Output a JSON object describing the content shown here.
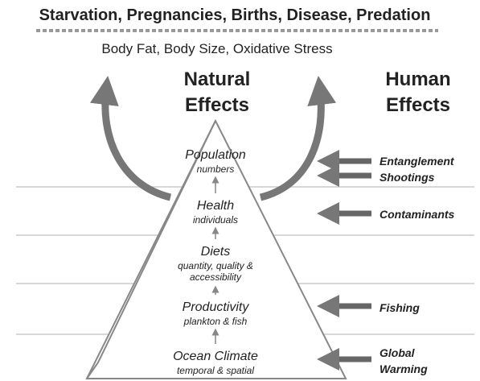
{
  "header": {
    "title": "Starvation, Pregnancies, Births, Disease, Predation",
    "subtitle": "Body Fat, Body Size, Oxidative Stress"
  },
  "columns": {
    "natural": [
      "Natural",
      "Effects"
    ],
    "human": [
      "Human",
      "Effects"
    ]
  },
  "levels": [
    {
      "name": "Population",
      "detail": [
        "numbers"
      ]
    },
    {
      "name": "Health",
      "detail": [
        "individuals"
      ]
    },
    {
      "name": "Diets",
      "detail": [
        "quantity, quality &",
        "accessibility"
      ]
    },
    {
      "name": "Productivity",
      "detail": [
        "plankton & fish"
      ]
    },
    {
      "name": "Ocean Climate",
      "detail": [
        "temporal & spatial"
      ]
    }
  ],
  "human_effects": [
    {
      "label": [
        "Entanglement"
      ]
    },
    {
      "label": [
        "Shootings"
      ]
    },
    {
      "label": [
        "Contaminants"
      ]
    },
    {
      "label": [
        "Fishing"
      ]
    },
    {
      "label": [
        "Global",
        "Warming"
      ]
    }
  ]
}
